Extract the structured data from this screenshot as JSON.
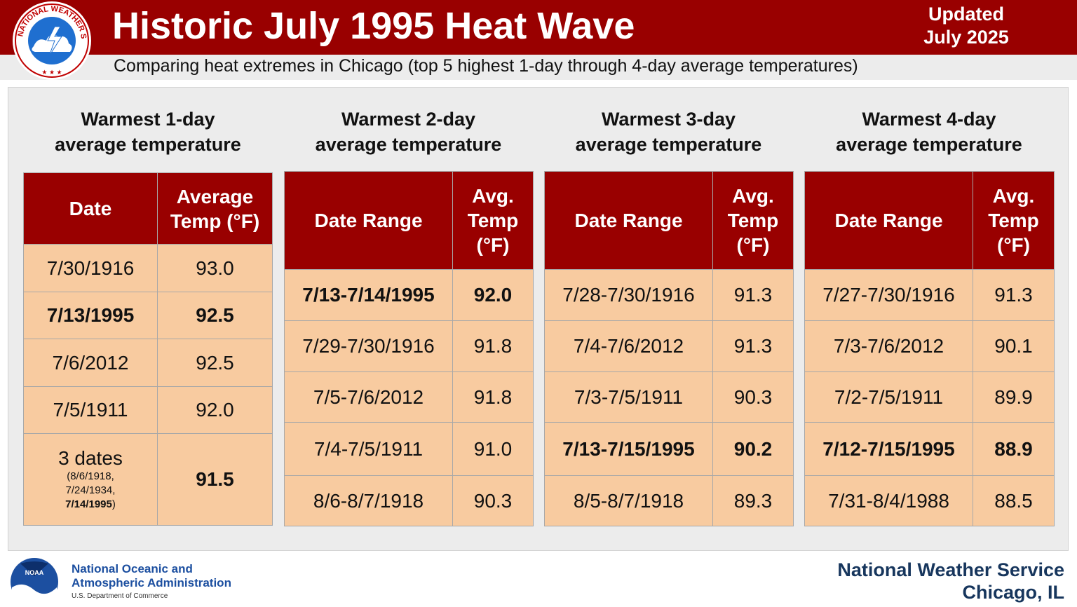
{
  "header": {
    "title": "Historic July 1995 Heat Wave",
    "updated_line1": "Updated",
    "updated_line2": "July 2025",
    "subtitle": "Comparing heat extremes in Chicago (top 5 highest 1-day through 4-day average temperatures)",
    "logo_text": "NATIONAL WEATHER SERVICE"
  },
  "colors": {
    "header_bg": "#990000",
    "table_header": "#990000",
    "cell_bg": "#f8cba0",
    "footer_text": "#17365d",
    "noaa_blue": "#1c4fa0"
  },
  "sections": [
    {
      "title_line1": "Warmest 1-day",
      "title_line2": "average temperature",
      "col1": "Date",
      "col2": "Average Temp (°F)",
      "rows": [
        {
          "date": "7/30/1916",
          "temp": "93.0"
        },
        {
          "date": "7/13/1995",
          "temp": "92.5",
          "highlight": true
        },
        {
          "date": "7/6/2012",
          "temp": "92.5"
        },
        {
          "date": "7/5/1911",
          "temp": "92.0"
        },
        {
          "date": "3 dates",
          "date_note": "(8/6/1918,",
          "date_note2": "7/24/1934,",
          "date_note3": "7/14/1995",
          "date_note_end": ")",
          "temp": "91.5"
        }
      ]
    },
    {
      "title_line1": "Warmest 2-day",
      "title_line2": "average temperature",
      "col1": "Date Range",
      "col2": "Avg. Temp (°F)",
      "rows": [
        {
          "date": "7/13-7/14/1995",
          "temp": "92.0",
          "highlight": true
        },
        {
          "date": "7/29-7/30/1916",
          "temp": "91.8"
        },
        {
          "date": "7/5-7/6/2012",
          "temp": "91.8"
        },
        {
          "date": "7/4-7/5/1911",
          "temp": "91.0"
        },
        {
          "date": "8/6-8/7/1918",
          "temp": "90.3"
        }
      ]
    },
    {
      "title_line1": "Warmest 3-day",
      "title_line2": "average temperature",
      "col1": "Date Range",
      "col2": "Avg. Temp (°F)",
      "rows": [
        {
          "date": "7/28-7/30/1916",
          "temp": "91.3"
        },
        {
          "date": "7/4-7/6/2012",
          "temp": "91.3"
        },
        {
          "date": "7/3-7/5/1911",
          "temp": "90.3"
        },
        {
          "date": "7/13-7/15/1995",
          "temp": "90.2",
          "highlight": true
        },
        {
          "date": "8/5-8/7/1918",
          "temp": "89.3"
        }
      ]
    },
    {
      "title_line1": "Warmest 4-day",
      "title_line2": "average temperature",
      "col1": "Date Range",
      "col2": "Avg. Temp (°F)",
      "rows": [
        {
          "date": "7/27-7/30/1916",
          "temp": "91.3"
        },
        {
          "date": "7/3-7/6/2012",
          "temp": "90.1"
        },
        {
          "date": "7/2-7/5/1911",
          "temp": "89.9"
        },
        {
          "date": "7/12-7/15/1995",
          "temp": "88.9",
          "highlight": true
        },
        {
          "date": "7/31-8/4/1988",
          "temp": "88.5"
        }
      ]
    }
  ],
  "footer": {
    "noaa_line1": "National Oceanic and",
    "noaa_line2": "Atmospheric Administration",
    "noaa_sub": "U.S. Department of Commerce",
    "noaa_logo_text": "NOAA",
    "nws_line1": "National Weather Service",
    "nws_line2": "Chicago, IL"
  }
}
